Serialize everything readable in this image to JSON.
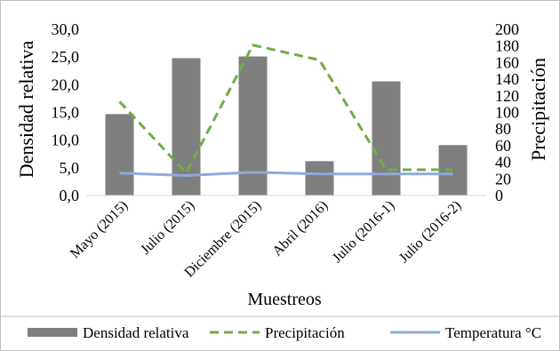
{
  "chart_data": {
    "type": "bar",
    "xlabel": "Muestreos",
    "ylabel": "Densidad relativa",
    "y2label": "Precipitación",
    "categories": [
      "Mayo (2015)",
      "Julio (2015)",
      "Diciembre (2015)",
      "Abril (2016)",
      "Julio (2016-1)",
      "Julio (2016-2)"
    ],
    "ylim": [
      0,
      30
    ],
    "y_ticks": [
      "0,0",
      "5,0",
      "10,0",
      "15,0",
      "20,0",
      "25,0",
      "30,0"
    ],
    "y2lim": [
      0,
      200
    ],
    "y2_ticks": [
      "0",
      "20",
      "40",
      "60",
      "80",
      "100",
      "120",
      "140",
      "160",
      "180",
      "200"
    ],
    "series": [
      {
        "name": "Densidad relativa",
        "type": "bar",
        "axis": "left",
        "color": "#7f7f7f",
        "values": [
          14.7,
          24.8,
          25.1,
          6.2,
          20.6,
          9.1
        ]
      },
      {
        "name": "Precipitación",
        "type": "line",
        "style": "dashed",
        "axis": "right",
        "color": "#70ad47",
        "values": [
          113,
          27,
          181,
          163,
          31,
          31
        ]
      },
      {
        "name": "Temperatura °C",
        "type": "line",
        "style": "solid",
        "axis": "right",
        "color": "#8faadc",
        "values": [
          27,
          24,
          28,
          26,
          26,
          26
        ]
      }
    ],
    "legend_position": "bottom",
    "grid": false
  }
}
